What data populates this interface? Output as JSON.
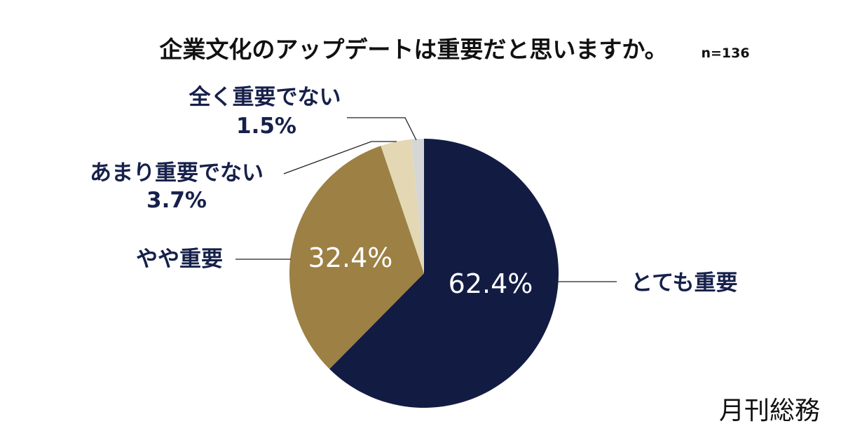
{
  "chart_data": {
    "type": "pie",
    "title": "企業文化のアップデートは重要だと思いますか。",
    "sample_size": "n=136",
    "slices": [
      {
        "label": "とても重要",
        "value": 62.4,
        "value_label": "62.4%",
        "color": "#121c43"
      },
      {
        "label": "やや重要",
        "value": 32.4,
        "value_label": "32.4%",
        "color": "#9c8044"
      },
      {
        "label": "あまり重要でない",
        "value": 3.7,
        "value_label": "3.7%",
        "color": "#e3d8b3"
      },
      {
        "label": "全く重要でない",
        "value": 1.5,
        "value_label": "1.5%",
        "color": "#d6d6d6"
      }
    ],
    "start": "12 o'clock",
    "direction": "clockwise"
  },
  "brand": "月刊総務"
}
